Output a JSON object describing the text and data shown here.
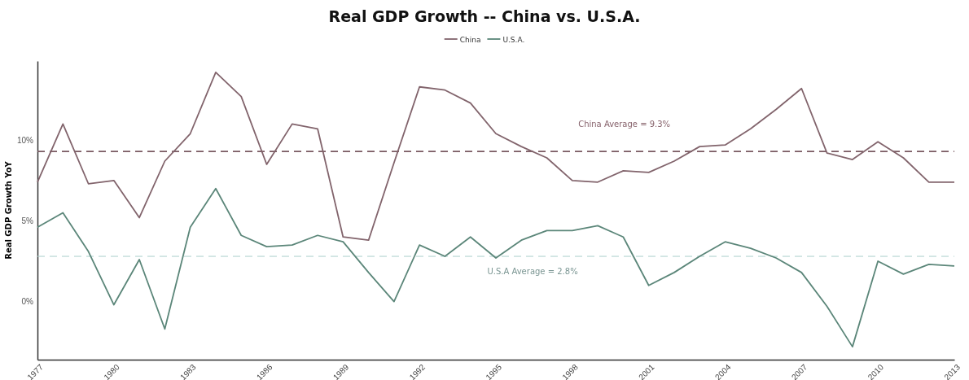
{
  "chart_data": {
    "type": "line",
    "title": "Real GDP Growth -- China vs. U.S.A.",
    "ylabel": "Real GDP Growth YoY",
    "x": [
      1977,
      1978,
      1979,
      1980,
      1981,
      1982,
      1983,
      1984,
      1985,
      1986,
      1987,
      1988,
      1989,
      1990,
      1991,
      1992,
      1993,
      1994,
      1995,
      1996,
      1997,
      1998,
      1999,
      2000,
      2001,
      2002,
      2003,
      2004,
      2005,
      2006,
      2007,
      2008,
      2009,
      2010,
      2011,
      2012,
      2013
    ],
    "series": [
      {
        "name": "China",
        "color": "#82646c",
        "values": [
          7.4,
          11.0,
          7.3,
          7.5,
          5.2,
          8.7,
          10.4,
          14.2,
          12.7,
          8.5,
          11.0,
          10.7,
          4.0,
          3.8,
          8.6,
          13.3,
          13.1,
          12.3,
          10.4,
          9.6,
          8.9,
          7.5,
          7.4,
          8.1,
          8.0,
          8.7,
          9.6,
          9.7,
          10.7,
          11.9,
          13.2,
          9.2,
          8.8,
          9.9,
          8.9,
          7.4,
          7.4
        ]
      },
      {
        "name": "U.S.A.",
        "color": "#5b8679",
        "values": [
          4.6,
          5.5,
          3.1,
          -0.2,
          2.6,
          -1.7,
          4.6,
          7.0,
          4.1,
          3.4,
          3.5,
          4.1,
          3.7,
          1.8,
          0.0,
          3.5,
          2.8,
          4.0,
          2.7,
          3.8,
          4.4,
          4.4,
          4.7,
          4.0,
          1.0,
          1.8,
          2.8,
          3.7,
          3.3,
          2.7,
          1.8,
          -0.3,
          -2.8,
          2.5,
          1.7,
          2.3,
          2.2
        ]
      }
    ],
    "xlim": [
      1977,
      2013
    ],
    "xticks": [
      1977,
      1980,
      1983,
      1986,
      1989,
      1992,
      1995,
      1998,
      2001,
      2004,
      2007,
      2010,
      2013
    ],
    "ylim": [
      -3.6,
      14.9
    ],
    "yticks": [
      {
        "value": 0,
        "label": "0%"
      },
      {
        "value": 5,
        "label": "5%"
      },
      {
        "value": 10,
        "label": "10%"
      }
    ],
    "ref_lines": [
      {
        "axis": "y",
        "value": 9.3,
        "label": "China Average = 9.3%",
        "color": "#7a5a62",
        "line_style": "dashed"
      },
      {
        "axis": "y",
        "value": 2.8,
        "label": "U.S.A Average = 2.8%",
        "color": "#a9cfcb",
        "line_style": "dashed"
      }
    ],
    "grid": false,
    "legend": "top",
    "line_style": "solid",
    "marker": "none"
  }
}
